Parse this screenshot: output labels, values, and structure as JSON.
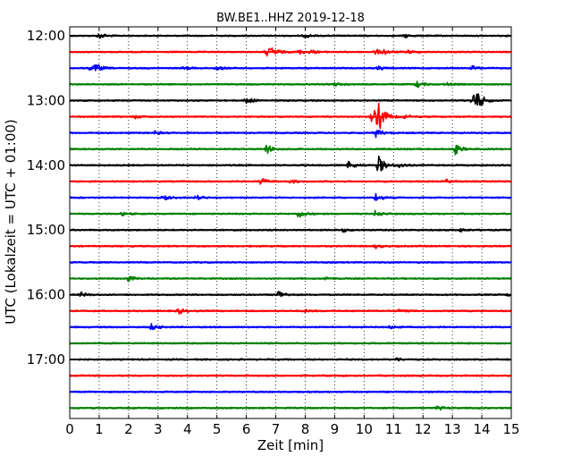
{
  "chart_data": {
    "type": "line",
    "title": "BW.BE1..HHZ 2019-12-18",
    "xlabel": "Zeit  [min]",
    "ylabel": "UTC (Lokalzeit = UTC + 01:00)",
    "xlim": [
      0,
      15
    ],
    "x_ticks": [
      "0",
      "1",
      "2",
      "3",
      "4",
      "5",
      "6",
      "7",
      "8",
      "9",
      "10",
      "11",
      "12",
      "13",
      "14",
      "15"
    ],
    "y_ticks": [
      "12:00",
      "13:00",
      "14:00",
      "15:00",
      "16:00",
      "17:00"
    ],
    "grid": "vertical dotted at each minute",
    "trace_interval_minutes": 15,
    "colors": {
      "black": "#000000",
      "red": "#ff0000",
      "blue": "#0000ff",
      "green": "#008000"
    },
    "color_cycle": [
      "black",
      "red",
      "blue",
      "green"
    ],
    "series": [
      {
        "start": "12:00",
        "color": "black",
        "events": [
          [
            1.0,
            0.7
          ],
          [
            8.0,
            0.4
          ],
          [
            11.4,
            0.4
          ]
        ]
      },
      {
        "start": "12:15",
        "color": "red",
        "events": [
          [
            6.7,
            1.0
          ],
          [
            6.9,
            0.8
          ],
          [
            7.8,
            0.5
          ],
          [
            8.2,
            0.4
          ],
          [
            10.4,
            0.6
          ],
          [
            10.7,
            0.5
          ],
          [
            11.5,
            0.4
          ]
        ]
      },
      {
        "start": "12:30",
        "color": "blue",
        "events": [
          [
            0.7,
            0.5
          ],
          [
            0.9,
            0.8
          ],
          [
            3.9,
            0.4
          ],
          [
            5.0,
            0.5
          ],
          [
            10.5,
            0.4
          ],
          [
            13.7,
            0.5
          ]
        ]
      },
      {
        "start": "12:45",
        "color": "green",
        "events": [
          [
            9.0,
            0.4
          ],
          [
            11.8,
            0.7
          ],
          [
            12.8,
            0.4
          ]
        ]
      },
      {
        "start": "13:00",
        "color": "black",
        "events": [
          [
            6.0,
            0.9
          ],
          [
            13.7,
            2.2
          ],
          [
            13.9,
            1.2
          ]
        ]
      },
      {
        "start": "13:15",
        "color": "red",
        "events": [
          [
            2.2,
            0.4
          ],
          [
            10.3,
            2.0
          ],
          [
            10.5,
            3.0
          ],
          [
            11.4,
            0.4
          ]
        ]
      },
      {
        "start": "13:30",
        "color": "blue",
        "events": [
          [
            2.9,
            0.4
          ],
          [
            10.4,
            1.0
          ]
        ]
      },
      {
        "start": "13:45",
        "color": "green",
        "events": [
          [
            6.7,
            1.1
          ],
          [
            13.1,
            1.2
          ]
        ]
      },
      {
        "start": "14:00",
        "color": "black",
        "events": [
          [
            9.5,
            1.0
          ],
          [
            10.5,
            2.2
          ],
          [
            11.2,
            0.6
          ]
        ]
      },
      {
        "start": "14:15",
        "color": "red",
        "events": [
          [
            6.5,
            0.8
          ],
          [
            7.5,
            0.4
          ],
          [
            12.8,
            0.4
          ]
        ]
      },
      {
        "start": "14:30",
        "color": "blue",
        "events": [
          [
            3.2,
            0.6
          ],
          [
            4.3,
            0.5
          ],
          [
            10.4,
            1.0
          ]
        ]
      },
      {
        "start": "14:45",
        "color": "green",
        "events": [
          [
            1.8,
            0.4
          ],
          [
            7.8,
            1.0
          ],
          [
            10.4,
            0.8
          ]
        ]
      },
      {
        "start": "15:00",
        "color": "black",
        "events": [
          [
            9.3,
            0.4
          ],
          [
            13.3,
            0.4
          ]
        ]
      },
      {
        "start": "15:15",
        "color": "red",
        "events": [
          [
            10.4,
            0.4
          ]
        ]
      },
      {
        "start": "15:30",
        "color": "blue",
        "events": []
      },
      {
        "start": "15:45",
        "color": "green",
        "events": [
          [
            2.0,
            0.6
          ],
          [
            8.7,
            0.4
          ]
        ]
      },
      {
        "start": "16:00",
        "color": "black",
        "events": [
          [
            0.4,
            0.5
          ],
          [
            7.1,
            1.0
          ],
          [
            14.9,
            0.3
          ]
        ]
      },
      {
        "start": "16:15",
        "color": "red",
        "events": [
          [
            3.7,
            0.7
          ],
          [
            8.0,
            0.3
          ],
          [
            11.2,
            0.3
          ]
        ]
      },
      {
        "start": "16:30",
        "color": "blue",
        "events": [
          [
            2.8,
            0.8
          ],
          [
            10.9,
            0.4
          ]
        ]
      },
      {
        "start": "16:45",
        "color": "green",
        "events": []
      },
      {
        "start": "17:00",
        "color": "black",
        "events": [
          [
            11.1,
            0.4
          ]
        ]
      },
      {
        "start": "17:15",
        "color": "red",
        "events": []
      },
      {
        "start": "17:30",
        "color": "blue",
        "events": []
      },
      {
        "start": "17:45",
        "color": "green",
        "events": [
          [
            12.5,
            0.5
          ]
        ]
      }
    ]
  }
}
